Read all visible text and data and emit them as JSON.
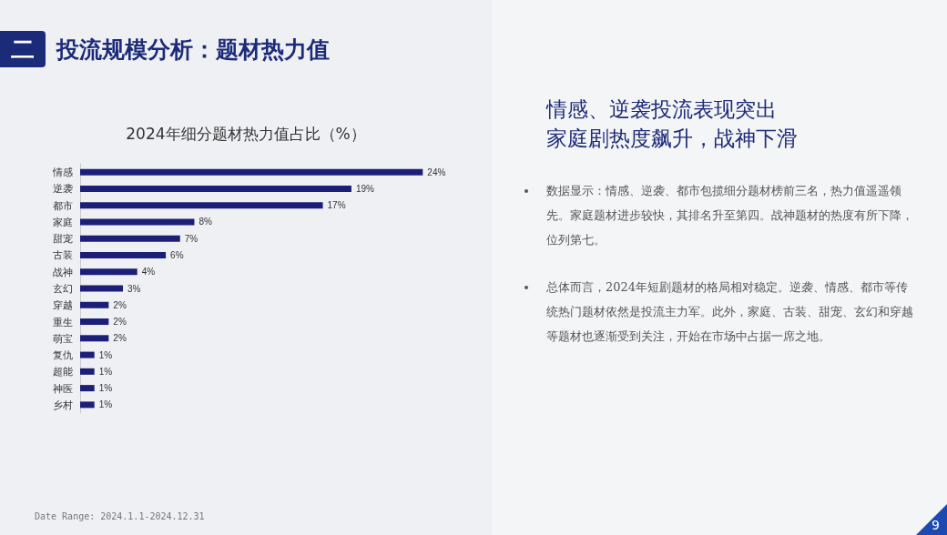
{
  "chart_data": {
    "type": "bar",
    "orientation": "horizontal",
    "title": "投流规模分析：题材热力值",
    "subtitle": "2024年细分题材热力值占比（%）",
    "categories": [
      "情感",
      "逆袭",
      "都市",
      "家庭",
      "甜宠",
      "古装",
      "战神",
      "玄幻",
      "穿越",
      "重生",
      "萌宝",
      "复仇",
      "超能",
      "神医",
      "乡村"
    ],
    "values": [
      24,
      19,
      17,
      8,
      7,
      6,
      4,
      3,
      2,
      2,
      2,
      1,
      1,
      1,
      1
    ],
    "value_labels": [
      "24%",
      "19%",
      "17%",
      "8%",
      "7%",
      "6%",
      "4%",
      "3%",
      "2%",
      "2%",
      "2%",
      "1%",
      "1%",
      "1%",
      "1%"
    ],
    "color": "#1c1f78",
    "grid": false,
    "annotations": [
      "二",
      "情感、逆袭投流表现突出",
      "家庭剧热度飙升，战神下滑",
      "数据显示：情感、逆袭、都市包揽细分题材榜前三名，热力值遥遥领先。家庭题材进步较快，其排名升至第四。战神题材的热度有所下降，位列第七。",
      "总体而言，2024年短剧题材的格局相对稳定。逆袭、情感、都市等传统热门题材依然是投流主力军。此外，家庭、古装、甜宠、玄幻和穿越等题材也逐渐受到关注，开始在市场中占据一席之地。",
      "Date Range: 2024.1.1-2024.12.31",
      "9"
    ]
  }
}
